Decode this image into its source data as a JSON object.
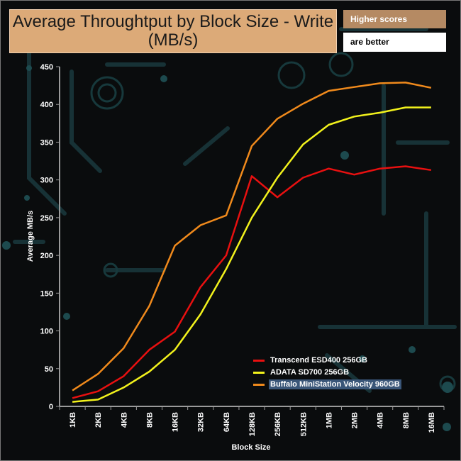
{
  "title": "Average Throughtput by Block Size - Write (MB/s)",
  "note_line1": "Higher scores",
  "note_line2": "are better",
  "chart_data": {
    "type": "line",
    "title": "Average Throughtput by Block Size - Write (MB/s)",
    "xlabel": "Block Size",
    "ylabel": "Average MB/s",
    "ylim": [
      0,
      450
    ],
    "yticks": [
      0,
      50,
      100,
      150,
      200,
      250,
      300,
      350,
      400,
      450
    ],
    "categories": [
      "1KB",
      "2KB",
      "4KB",
      "8KB",
      "16KB",
      "32KB",
      "64KB",
      "128KB",
      "256KB",
      "512KB",
      "1MB",
      "2MB",
      "4MB",
      "8MB",
      "16MB"
    ],
    "series": [
      {
        "name": "Transcend ESD400 256GB",
        "color": "#e81010",
        "values": [
          11,
          20,
          40,
          75,
          99,
          158,
          200,
          305,
          277,
          303,
          315,
          307,
          315,
          318,
          313
        ]
      },
      {
        "name": "ADATA SD700 256GB",
        "color": "#f2f21c",
        "values": [
          6,
          9,
          25,
          46,
          75,
          122,
          182,
          250,
          303,
          347,
          373,
          384,
          389,
          396,
          396
        ]
      },
      {
        "name": "Buffalo MiniStation Velocity 960GB",
        "color": "#f08a1c",
        "values": [
          21,
          43,
          77,
          133,
          213,
          240,
          253,
          345,
          381,
          401,
          418,
          423,
          428,
          429,
          422
        ]
      }
    ],
    "legend_position": "bottom-right",
    "grid": false
  }
}
